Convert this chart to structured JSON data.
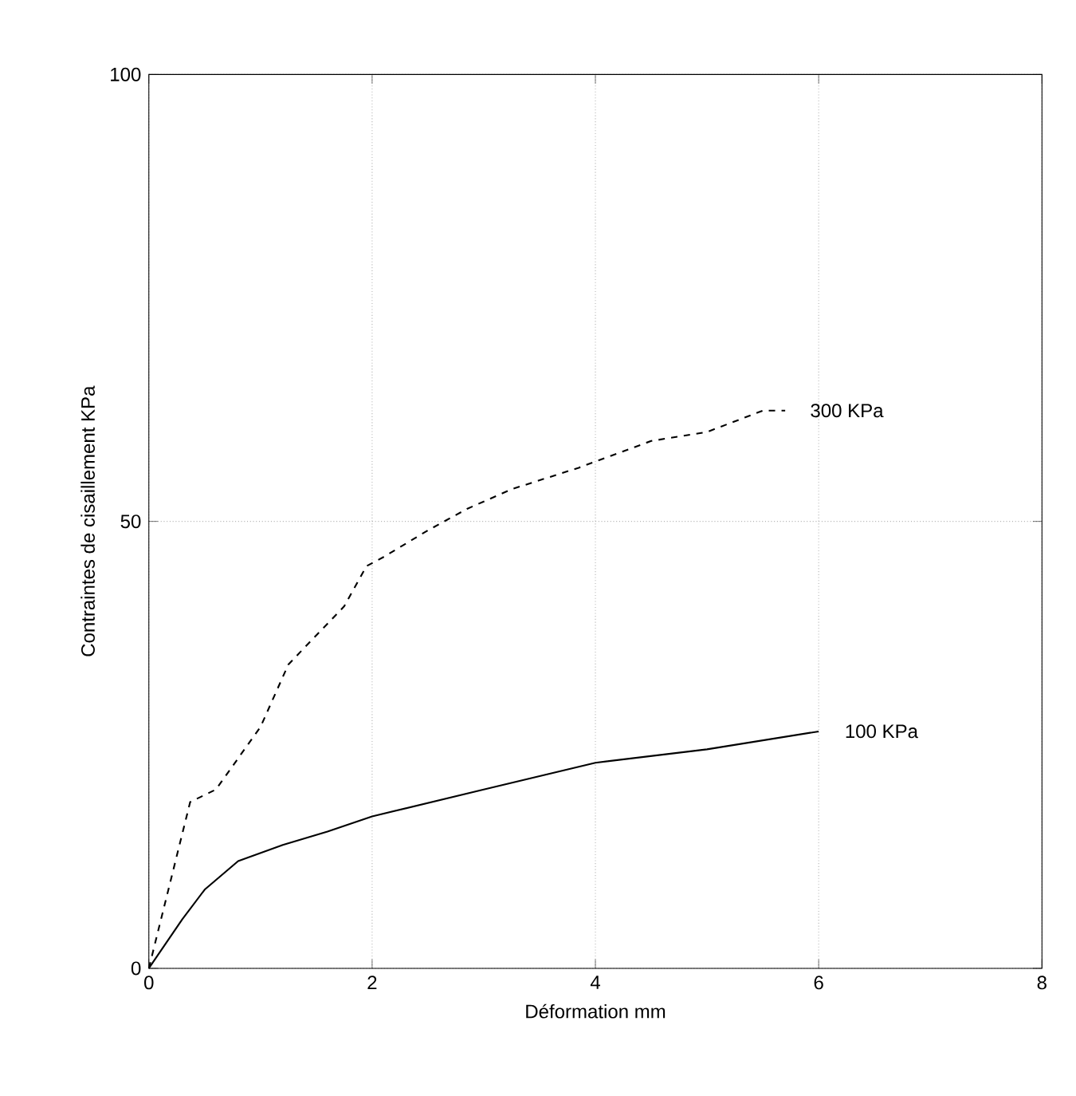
{
  "chart_data": {
    "type": "line",
    "xlabel": "Déformation mm",
    "ylabel": "Contraintes de cisaillement KPa",
    "xlim": [
      0,
      8
    ],
    "ylim": [
      0,
      100
    ],
    "xticks": [
      0,
      2,
      4,
      6,
      8
    ],
    "yticks": [
      0,
      50,
      100
    ],
    "grid": true,
    "series": [
      {
        "name": "100 KPa",
        "color": "#000000",
        "line_style": "solid",
        "x": [
          0,
          0.3,
          0.5,
          0.8,
          1.2,
          1.6,
          2,
          3,
          4,
          5,
          6
        ],
        "values": [
          0,
          5.5,
          8.8,
          12,
          13.8,
          15.3,
          17,
          20,
          23,
          24.5,
          26.5
        ]
      },
      {
        "name": "300 KPa",
        "color": "#000000",
        "line_style": "dashed",
        "x": [
          0,
          0.37,
          0.6,
          1,
          1.25,
          1.75,
          1.95,
          2.1,
          2.5,
          2.85,
          3.25,
          3.85,
          4.5,
          5,
          5.5,
          5.7
        ],
        "values": [
          0,
          18.6,
          20,
          27,
          34,
          40.5,
          45,
          46,
          49,
          51.4,
          53.6,
          56,
          59,
          60,
          62.4,
          62.4
        ]
      }
    ]
  }
}
